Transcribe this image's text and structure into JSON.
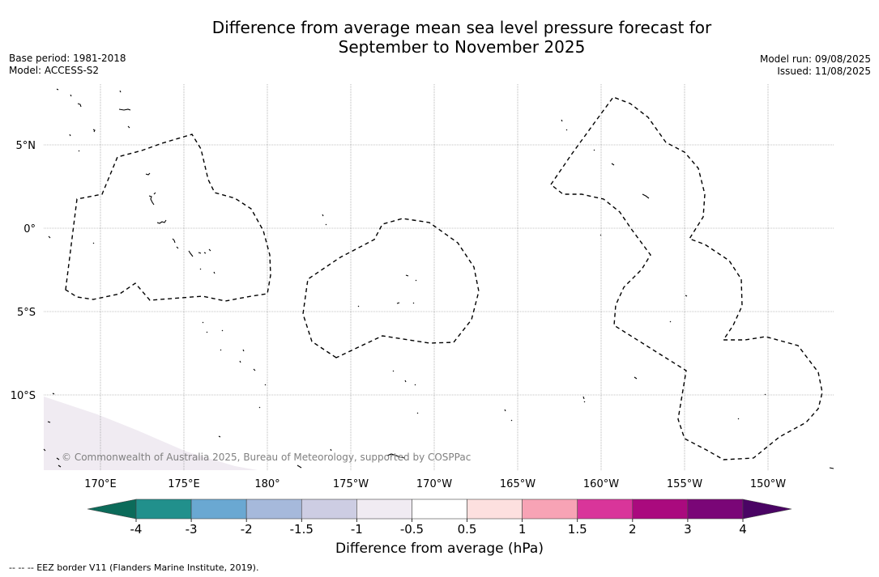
{
  "title_line1": "Difference from average mean sea level pressure forecast for",
  "title_line2": "September to November 2025",
  "base_period": "Base period: 1981-2018",
  "model": "Model: ACCESS-S2",
  "model_run": "Model run: 09/08/2025",
  "issued": "Issued: 11/08/2025",
  "copyright": "© Commonwealth of Australia 2025, Bureau of Meteorology, supported by COSPPac",
  "lat_labels": [
    {
      "deg": 5,
      "text": "5°N"
    },
    {
      "deg": 0,
      "text": "0°"
    },
    {
      "deg": -5,
      "text": "5°S"
    },
    {
      "deg": -10,
      "text": "10°S"
    }
  ],
  "lon_labels": [
    {
      "deg": 170,
      "text": "170°E"
    },
    {
      "deg": 175,
      "text": "175°E"
    },
    {
      "deg": 180,
      "text": "180°"
    },
    {
      "deg": 185,
      "text": "175°W"
    },
    {
      "deg": 190,
      "text": "170°W"
    },
    {
      "deg": 195,
      "text": "165°W"
    },
    {
      "deg": 200,
      "text": "160°W"
    },
    {
      "deg": 205,
      "text": "155°W"
    },
    {
      "deg": 210,
      "text": "150°W"
    }
  ],
  "colorbar": {
    "label": "Difference from average (hPa)",
    "under_color": "#0c6b5a",
    "over_color": "#4a0464",
    "bins": [
      {
        "color": "#21908c"
      },
      {
        "color": "#6aa8d2"
      },
      {
        "color": "#a6b9db"
      },
      {
        "color": "#cdcde3"
      },
      {
        "color": "#f0ebf2"
      },
      {
        "color": "#ffffff"
      },
      {
        "color": "#fde0df"
      },
      {
        "color": "#f7a3b5"
      },
      {
        "color": "#d9359a"
      },
      {
        "color": "#aa0a7e"
      },
      {
        "color": "#7a0677"
      }
    ],
    "ticks": [
      "-4",
      "-3",
      "-2",
      "-1.5",
      "-1",
      "-0.5",
      "0.5",
      "1",
      "1.5",
      "2",
      "3",
      "4"
    ]
  },
  "field_shading": {
    "value_range": "-1 to -0.5",
    "color": "#f0ebf2",
    "location": "bottom-left"
  },
  "footnote": "--  --  -- EEZ border V11 (Flanders Marine Institute, 2019)."
}
